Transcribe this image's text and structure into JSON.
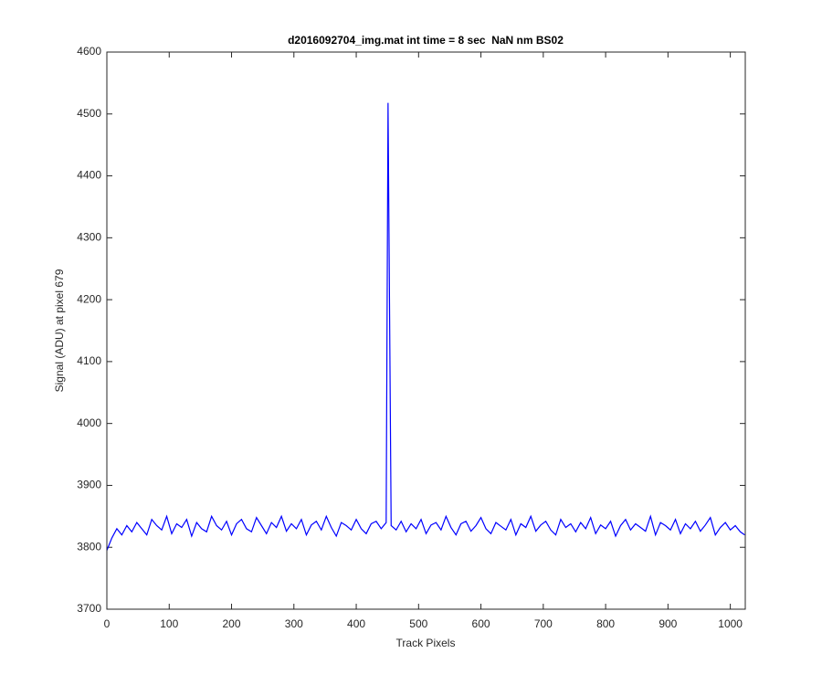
{
  "chart_data": {
    "type": "line",
    "title": "d2016092704_img.mat int time = 8 sec  NaN nm BS02",
    "x_label": "Track Pixels",
    "y_label": "Signal (ADU) at pixel 679",
    "xlim": [
      0,
      1024
    ],
    "xticks": [
      0,
      100,
      200,
      300,
      400,
      500,
      600,
      700,
      800,
      900,
      1000
    ],
    "ylim": [
      3700,
      4600
    ],
    "yticks": [
      3700,
      3800,
      3900,
      4000,
      4100,
      4200,
      4300,
      4400,
      4500,
      4600
    ],
    "grid": false,
    "series": [
      {
        "color": "#0000ff",
        "x": [
          0,
          8,
          16,
          24,
          32,
          40,
          48,
          56,
          64,
          72,
          80,
          88,
          96,
          104,
          112,
          120,
          128,
          136,
          144,
          152,
          160,
          168,
          176,
          184,
          192,
          200,
          208,
          216,
          224,
          232,
          240,
          248,
          256,
          264,
          272,
          280,
          288,
          296,
          304,
          312,
          320,
          328,
          336,
          344,
          352,
          360,
          368,
          376,
          384,
          392,
          400,
          408,
          416,
          424,
          432,
          440,
          448,
          451,
          456,
          464,
          472,
          480,
          488,
          496,
          504,
          512,
          520,
          528,
          536,
          544,
          552,
          560,
          568,
          576,
          584,
          592,
          600,
          608,
          616,
          624,
          632,
          640,
          648,
          656,
          664,
          672,
          680,
          688,
          696,
          704,
          712,
          720,
          728,
          736,
          744,
          752,
          760,
          768,
          776,
          784,
          792,
          800,
          808,
          816,
          824,
          832,
          840,
          848,
          856,
          864,
          872,
          880,
          888,
          896,
          904,
          912,
          920,
          928,
          936,
          944,
          952,
          960,
          968,
          976,
          984,
          992,
          1000,
          1008,
          1016,
          1023
        ],
        "values": [
          3795,
          3815,
          3830,
          3820,
          3835,
          3825,
          3840,
          3830,
          3820,
          3845,
          3835,
          3828,
          3850,
          3822,
          3838,
          3832,
          3845,
          3818,
          3840,
          3830,
          3825,
          3850,
          3835,
          3828,
          3842,
          3820,
          3838,
          3845,
          3830,
          3825,
          3848,
          3835,
          3822,
          3840,
          3832,
          3850,
          3826,
          3838,
          3830,
          3845,
          3820,
          3836,
          3842,
          3828,
          3850,
          3832,
          3818,
          3840,
          3835,
          3828,
          3845,
          3830,
          3822,
          3838,
          3842,
          3830,
          3840,
          4518,
          3835,
          3828,
          3842,
          3825,
          3838,
          3830,
          3845,
          3822,
          3836,
          3840,
          3828,
          3850,
          3832,
          3820,
          3838,
          3842,
          3826,
          3835,
          3848,
          3830,
          3822,
          3840,
          3834,
          3828,
          3845,
          3820,
          3838,
          3832,
          3850,
          3826,
          3836,
          3842,
          3828,
          3820,
          3845,
          3832,
          3838,
          3825,
          3840,
          3830,
          3848,
          3822,
          3836,
          3830,
          3842,
          3818,
          3835,
          3845,
          3828,
          3838,
          3832,
          3826,
          3850,
          3820,
          3840,
          3835,
          3828,
          3845,
          3822,
          3838,
          3830,
          3842,
          3826,
          3836,
          3848,
          3820,
          3832,
          3840,
          3828,
          3835,
          3825,
          3820
        ]
      }
    ]
  }
}
